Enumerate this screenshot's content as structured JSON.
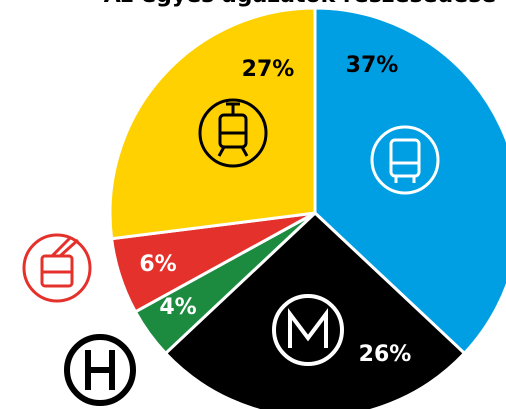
{
  "chart_data": {
    "type": "pie",
    "title": "Az egyes ágazatok részesedése",
    "values": [
      37,
      26,
      4,
      6,
      27
    ],
    "value_labels": [
      "37%",
      "26%",
      "4%",
      "6%",
      "27%"
    ],
    "colors": [
      "#009fe3",
      "#000000",
      "#1d8b3f",
      "#e4312b",
      "#ffd100"
    ]
  }
}
